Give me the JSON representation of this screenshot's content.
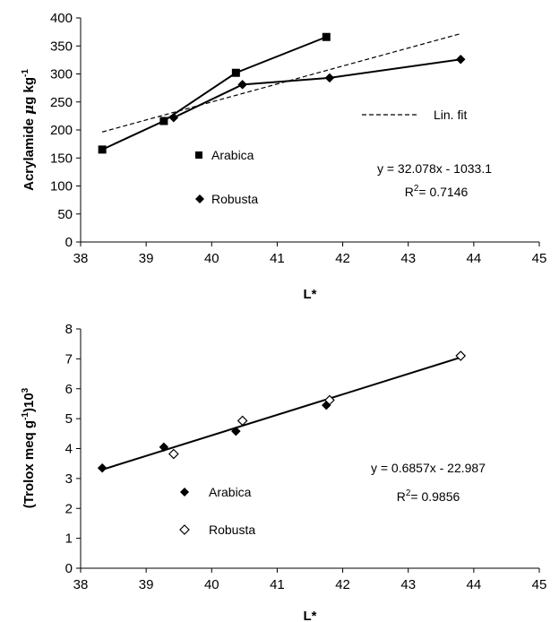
{
  "chart_data": [
    {
      "type": "line",
      "xlabel": "L*",
      "ylabel": {
        "main": "Acrylamide ",
        "mu": "μ",
        "unit": "g kg",
        "sup": "-1"
      },
      "xlim": [
        38,
        45
      ],
      "ylim": [
        0,
        400
      ],
      "xticks": [
        "38",
        "39",
        "40",
        "41",
        "42",
        "43",
        "44",
        "45"
      ],
      "yticks": [
        "0",
        "50",
        "100",
        "150",
        "200",
        "250",
        "300",
        "350",
        "400"
      ],
      "grid": false,
      "series": [
        {
          "name": "Arabica",
          "marker": "square",
          "x": [
            38.33,
            39.27,
            40.37,
            41.75
          ],
          "y": [
            165,
            216,
            302,
            366
          ]
        },
        {
          "name": "Robusta",
          "marker": "diamond",
          "x": [
            39.42,
            40.47,
            41.8,
            43.8
          ],
          "y": [
            222,
            281,
            293,
            326
          ]
        }
      ],
      "fit": {
        "legend_label": "Lin. fit",
        "equation": "y = 32.078x - 1033.1",
        "r2_base": "R",
        "r2_sup": "2",
        "r2_value": "= 0.7146",
        "x": [
          38.33,
          43.8
        ],
        "y": [
          196.4,
          371.9
        ]
      }
    },
    {
      "type": "scatter",
      "xlabel": "L*",
      "ylabel": {
        "pre": "(Trolox meq g",
        "sup1": "-1",
        "mid": ")10",
        "sup2": "3"
      },
      "xlim": [
        38,
        45
      ],
      "ylim": [
        0,
        8
      ],
      "xticks": [
        "38",
        "39",
        "40",
        "41",
        "42",
        "43",
        "44",
        "45"
      ],
      "yticks": [
        "0",
        "1",
        "2",
        "3",
        "4",
        "5",
        "6",
        "7",
        "8"
      ],
      "grid": false,
      "series": [
        {
          "name": "Arabica",
          "marker": "filled-diamond",
          "x": [
            38.33,
            39.27,
            40.37,
            41.75
          ],
          "y": [
            3.35,
            4.05,
            4.58,
            5.45
          ]
        },
        {
          "name": "Robusta",
          "marker": "open-diamond",
          "x": [
            39.42,
            40.47,
            41.8,
            43.8
          ],
          "y": [
            3.82,
            4.93,
            5.62,
            7.1
          ]
        }
      ],
      "fit": {
        "equation": "y = 0.6857x - 22.987",
        "r2_base": "R",
        "r2_sup": "2",
        "r2_value": "= 0.9856",
        "x": [
          38.33,
          43.8
        ],
        "y": [
          3.296,
          7.047
        ]
      }
    }
  ]
}
